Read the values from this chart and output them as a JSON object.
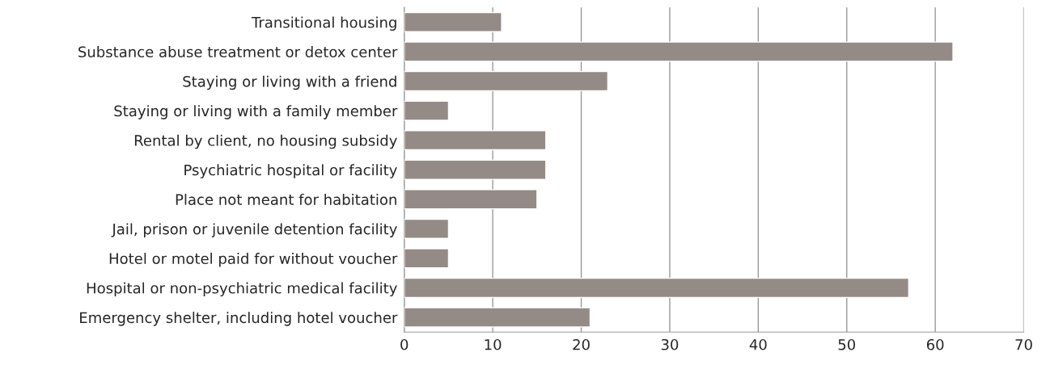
{
  "chart_data": {
    "type": "bar",
    "orientation": "horizontal",
    "categories": [
      "Transitional housing",
      "Substance abuse treatment or detox center",
      "Staying or living with a friend",
      "Staying or living with a family member",
      "Rental by client, no housing subsidy",
      "Psychiatric hospital or facility",
      "Place not meant for habitation",
      "Jail, prison or juvenile detention facility",
      "Hotel or motel paid for without voucher",
      "Hospital or non-psychiatric medical facility",
      "Emergency shelter, including hotel voucher"
    ],
    "values": [
      11,
      62,
      23,
      5,
      16,
      16,
      15,
      5,
      5,
      57,
      21
    ],
    "color": "#948a86",
    "xlim": [
      0,
      70
    ],
    "xticks": [
      0,
      10,
      20,
      30,
      40,
      50,
      60,
      70
    ],
    "grid": "x"
  }
}
